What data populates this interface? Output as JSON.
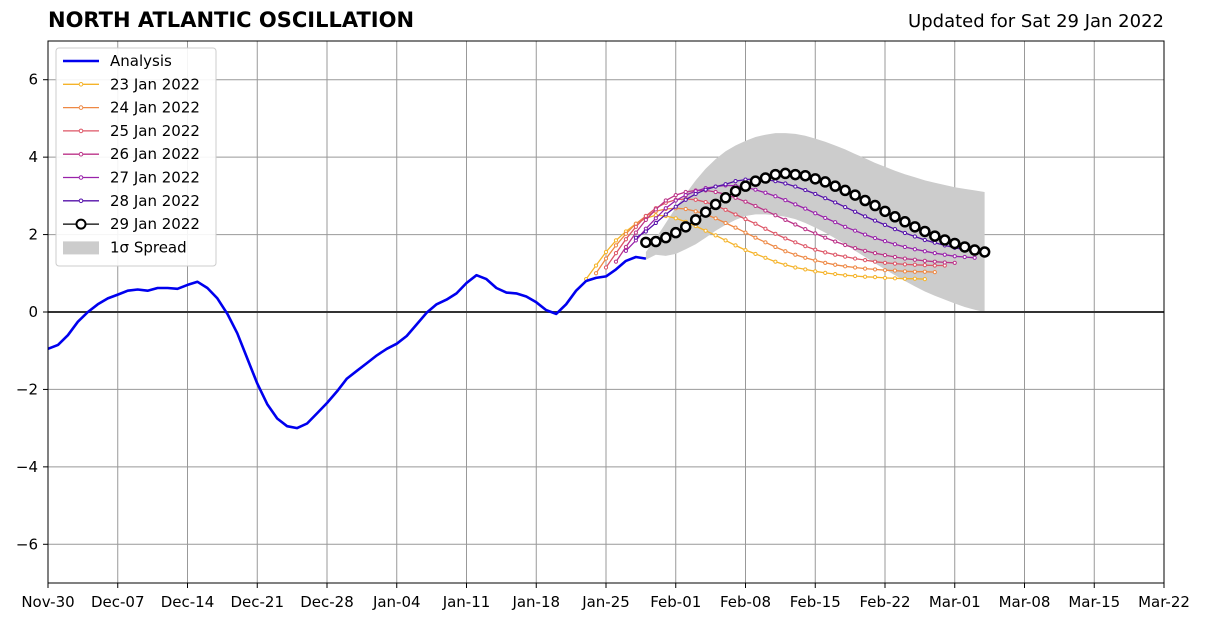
{
  "title": "NORTH ATLANTIC OSCILLATION",
  "subtitle": "Updated for Sat 29 Jan 2022",
  "chart_data": {
    "type": "line",
    "xlim_day": [
      0,
      112
    ],
    "ylim": [
      -7,
      7
    ],
    "x_ticks": [
      {
        "day": 0,
        "label": "Nov-30"
      },
      {
        "day": 7,
        "label": "Dec-07"
      },
      {
        "day": 14,
        "label": "Dec-14"
      },
      {
        "day": 21,
        "label": "Dec-21"
      },
      {
        "day": 28,
        "label": "Dec-28"
      },
      {
        "day": 35,
        "label": "Jan-04"
      },
      {
        "day": 42,
        "label": "Jan-11"
      },
      {
        "day": 49,
        "label": "Jan-18"
      },
      {
        "day": 56,
        "label": "Jan-25"
      },
      {
        "day": 63,
        "label": "Feb-01"
      },
      {
        "day": 70,
        "label": "Feb-08"
      },
      {
        "day": 77,
        "label": "Feb-15"
      },
      {
        "day": 84,
        "label": "Feb-22"
      },
      {
        "day": 91,
        "label": "Mar-01"
      },
      {
        "day": 98,
        "label": "Mar-08"
      },
      {
        "day": 105,
        "label": "Mar-15"
      },
      {
        "day": 112,
        "label": "Mar-22"
      }
    ],
    "y_ticks": [
      -6,
      -4,
      -2,
      0,
      2,
      4,
      6
    ],
    "grid": true,
    "zero_line": true,
    "legend_position": "top-left",
    "analysis": {
      "name": "Analysis",
      "color": "#0000ee",
      "values": [
        -0.95,
        -0.85,
        -0.6,
        -0.25,
        0,
        0.2,
        0.35,
        0.45,
        0.55,
        0.58,
        0.55,
        0.62,
        0.62,
        0.6,
        0.7,
        0.78,
        0.62,
        0.35,
        -0.05,
        -0.55,
        -1.2,
        -1.85,
        -2.38,
        -2.75,
        -2.95,
        -3.0,
        -2.88,
        -2.62,
        -2.35,
        -2.05,
        -1.72,
        -1.52,
        -1.32,
        -1.12,
        -0.95,
        -0.82,
        -0.62,
        -0.32,
        -0.02,
        0.2,
        0.32,
        0.48,
        0.75,
        0.95,
        0.85,
        0.62,
        0.5,
        0.48,
        0.4,
        0.25,
        0.05,
        -0.05,
        0.2,
        0.55,
        0.8,
        0.88,
        0.92,
        1.1,
        1.32,
        1.42,
        1.38
      ]
    },
    "forecasts": [
      {
        "name": "23 Jan 2022",
        "color": "#f5b329",
        "start_day": 54,
        "values": [
          0.85,
          1.2,
          1.55,
          1.85,
          2.08,
          2.28,
          2.42,
          2.5,
          2.48,
          2.42,
          2.33,
          2.22,
          2.1,
          1.98,
          1.85,
          1.72,
          1.6,
          1.5,
          1.4,
          1.3,
          1.22,
          1.15,
          1.1,
          1.05,
          1.01,
          0.98,
          0.95,
          0.93,
          0.91,
          0.9,
          0.88,
          0.87,
          0.86,
          0.86,
          0.85
        ]
      },
      {
        "name": "24 Jan 2022",
        "color": "#ee8844",
        "start_day": 55,
        "values": [
          1.0,
          1.38,
          1.72,
          2.02,
          2.28,
          2.48,
          2.6,
          2.66,
          2.68,
          2.66,
          2.6,
          2.52,
          2.42,
          2.3,
          2.18,
          2.05,
          1.92,
          1.8,
          1.68,
          1.57,
          1.48,
          1.4,
          1.33,
          1.27,
          1.22,
          1.18,
          1.15,
          1.12,
          1.1,
          1.08,
          1.07,
          1.05,
          1.04,
          1.04,
          1.03
        ]
      },
      {
        "name": "25 Jan 2022",
        "color": "#dd5566",
        "start_day": 56,
        "values": [
          1.15,
          1.52,
          1.88,
          2.2,
          2.48,
          2.68,
          2.82,
          2.9,
          2.92,
          2.9,
          2.84,
          2.75,
          2.64,
          2.52,
          2.4,
          2.28,
          2.15,
          2.02,
          1.9,
          1.8,
          1.7,
          1.61,
          1.54,
          1.48,
          1.43,
          1.38,
          1.34,
          1.3,
          1.27,
          1.25,
          1.23,
          1.22,
          1.21,
          1.2,
          1.2
        ]
      },
      {
        "name": "26 Jan 2022",
        "color": "#bb3388",
        "start_day": 57,
        "values": [
          1.3,
          1.68,
          2.05,
          2.38,
          2.65,
          2.88,
          3.02,
          3.1,
          3.14,
          3.14,
          3.1,
          3.04,
          2.95,
          2.85,
          2.74,
          2.62,
          2.5,
          2.38,
          2.26,
          2.14,
          2.03,
          1.92,
          1.82,
          1.73,
          1.65,
          1.58,
          1.52,
          1.47,
          1.42,
          1.38,
          1.35,
          1.32,
          1.3,
          1.28,
          1.27
        ]
      },
      {
        "name": "27 Jan 2022",
        "color": "#9922aa",
        "start_day": 58,
        "values": [
          1.58,
          1.85,
          2.15,
          2.42,
          2.68,
          2.88,
          3.02,
          3.12,
          3.2,
          3.24,
          3.27,
          3.26,
          3.22,
          3.16,
          3.08,
          2.99,
          2.89,
          2.78,
          2.67,
          2.55,
          2.43,
          2.32,
          2.2,
          2.1,
          2.0,
          1.91,
          1.83,
          1.75,
          1.68,
          1.62,
          1.57,
          1.52,
          1.48,
          1.44,
          1.42,
          1.4
        ]
      },
      {
        "name": "28 Jan 2022",
        "color": "#5511aa",
        "start_day": 59,
        "values": [
          1.92,
          2.08,
          2.3,
          2.52,
          2.72,
          2.9,
          3.05,
          3.16,
          3.24,
          3.3,
          3.38,
          3.42,
          3.44,
          3.42,
          3.38,
          3.32,
          3.24,
          3.15,
          3.05,
          2.94,
          2.83,
          2.71,
          2.59,
          2.47,
          2.36,
          2.25,
          2.14,
          2.04,
          1.95,
          1.86,
          1.79,
          1.72,
          1.66,
          1.61,
          1.57,
          1.53
        ]
      },
      {
        "name": "29 Jan 2022",
        "color": "#000000",
        "start_day": 60,
        "values": [
          1.8,
          1.82,
          1.92,
          2.05,
          2.2,
          2.38,
          2.58,
          2.78,
          2.95,
          3.12,
          3.25,
          3.38,
          3.46,
          3.55,
          3.58,
          3.55,
          3.52,
          3.44,
          3.36,
          3.25,
          3.14,
          3.02,
          2.88,
          2.75,
          2.6,
          2.46,
          2.33,
          2.2,
          2.08,
          1.96,
          1.86,
          1.77,
          1.68,
          1.6,
          1.55
        ]
      }
    ],
    "spread": {
      "name": "1σ Spread",
      "color": "#cccccc",
      "start_day": 60,
      "upper": [
        1.55,
        1.9,
        2.3,
        2.7,
        3.05,
        3.4,
        3.7,
        3.95,
        4.15,
        4.3,
        4.42,
        4.52,
        4.58,
        4.62,
        4.62,
        4.6,
        4.55,
        4.48,
        4.4,
        4.3,
        4.2,
        4.08,
        3.97,
        3.85,
        3.75,
        3.65,
        3.56,
        3.48,
        3.4,
        3.34,
        3.28,
        3.22,
        3.18,
        3.14,
        3.1
      ],
      "lower": [
        1.35,
        1.48,
        1.45,
        1.5,
        1.62,
        1.75,
        1.92,
        2.1,
        2.25,
        2.38,
        2.48,
        2.52,
        2.52,
        2.5,
        2.46,
        2.4,
        2.3,
        2.18,
        2.05,
        1.9,
        1.75,
        1.58,
        1.42,
        1.26,
        1.1,
        0.95,
        0.8,
        0.66,
        0.53,
        0.42,
        0.32,
        0.22,
        0.13,
        0.06,
        0.0
      ]
    }
  }
}
